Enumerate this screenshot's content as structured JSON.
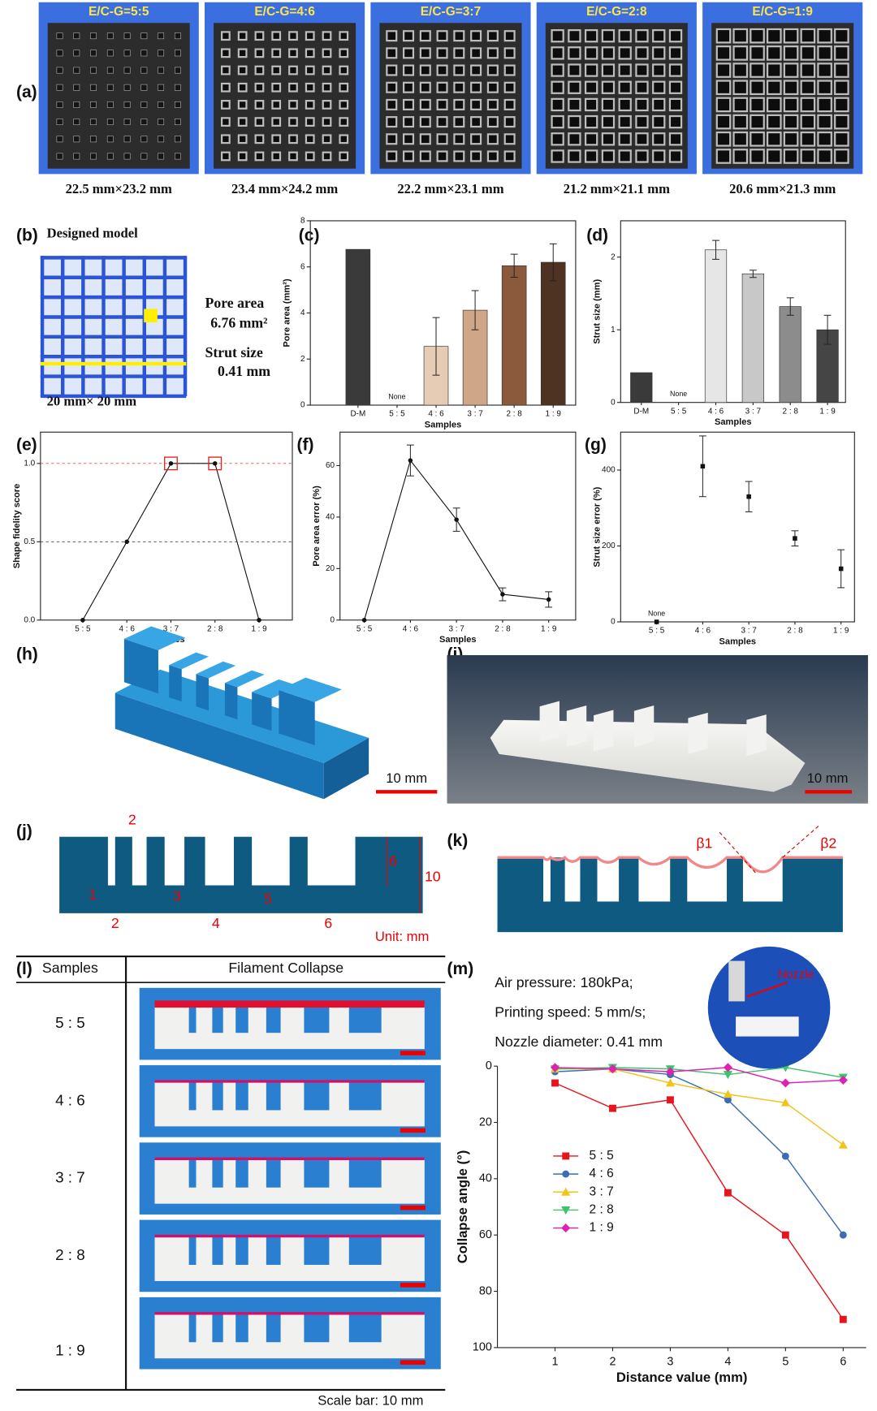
{
  "panel_labels": [
    "(a)",
    "(b)",
    "(c)",
    "(d)",
    "(e)",
    "(f)",
    "(g)",
    "(h)",
    "(i)",
    "(j)",
    "(k)",
    "(l)",
    "(m)"
  ],
  "panel_a": {
    "labels": [
      "E/C-G=5:5",
      "E/C-G=4:6",
      "E/C-G=3:7",
      "E/C-G=2:8",
      "E/C-G=1:9"
    ],
    "sizes": [
      "22.5 mm×23.2 mm",
      "23.4 mm×24.2 mm",
      "22.2 mm×23.1 mm",
      "21.2 mm×21.1 mm",
      "20.6 mm×21.3 mm"
    ]
  },
  "panel_b": {
    "title": "Designed model",
    "pore_area_label": "Pore area",
    "pore_area": "6.76 mm²",
    "strut_size_label": "Strut size",
    "strut_size": "0.41 mm",
    "dimensions": "20 mm× 20 mm"
  },
  "panel_h": {
    "scale_bar": "10 mm"
  },
  "panel_i": {
    "scale_bar": "10 mm"
  },
  "panel_j": {
    "dimensions": [
      "2",
      "1",
      "2",
      "3",
      "4",
      "5",
      "6",
      "6",
      "10"
    ],
    "unit": "Unit: mm"
  },
  "panel_k": {
    "angles": [
      "β1",
      "β2"
    ]
  },
  "panel_l": {
    "headers": [
      "Samples",
      "Filament Collapse"
    ],
    "rows": [
      "5 : 5",
      "4 : 6",
      "3 : 7",
      "2 : 8",
      "1 : 9"
    ],
    "scale_bar": "Scale bar: 10 mm"
  },
  "panel_m": {
    "conditions": [
      "Air pressure:  180kPa;",
      "Printing speed:  5 mm/s;",
      "Nozzle diameter:  0.41 mm"
    ],
    "callout": "Nozzle"
  },
  "chart_data": [
    {
      "type": "bar",
      "ylabel": "Pore area (mm²)",
      "xlabel": "Samples",
      "categories": [
        "D-M",
        "5 : 5",
        "4 : 6",
        "3 : 7",
        "2 : 8",
        "1 : 9"
      ],
      "values": [
        6.76,
        null,
        2.55,
        4.12,
        6.05,
        6.2
      ],
      "errors": [
        null,
        null,
        1.25,
        0.85,
        0.5,
        0.8
      ],
      "colors": [
        "#3a3a3a",
        "#cccccc",
        "#e6cbb5",
        "#cfa688",
        "#8b5a3c",
        "#4e3222"
      ],
      "ylim": [
        0,
        8
      ],
      "yticks": [
        0,
        2,
        4,
        6,
        8
      ],
      "annotations": [
        {
          "text": "None",
          "x": "5 : 5"
        }
      ]
    },
    {
      "type": "bar",
      "ylabel": "Strut size (mm)",
      "xlabel": "Samples",
      "categories": [
        "D-M",
        "5 : 5",
        "4 : 6",
        "3 : 7",
        "2 : 8",
        "1 : 9"
      ],
      "values": [
        0.41,
        null,
        2.1,
        1.77,
        1.32,
        1.0
      ],
      "errors": [
        null,
        null,
        0.13,
        0.05,
        0.12,
        0.2
      ],
      "colors": [
        "#3a3a3a",
        "#cccccc",
        "#e6e6e6",
        "#c8c8c8",
        "#8c8c8c",
        "#454545"
      ],
      "ylim": [
        0,
        2.5
      ],
      "yticks": [
        0,
        1,
        2
      ],
      "annotations": [
        {
          "text": "None",
          "x": "5 : 5"
        }
      ]
    },
    {
      "type": "line",
      "ylabel": "Shape fidelity score",
      "xlabel": "Samples",
      "categories": [
        "5 : 5",
        "4 : 6",
        "3 : 7",
        "2 : 8",
        "1 : 9"
      ],
      "values": [
        0,
        0.5,
        1,
        1,
        0
      ],
      "color": "#111111",
      "ylim": [
        0,
        1.2
      ],
      "yticks": [
        {
          "value": 0,
          "label": "0.0"
        },
        {
          "value": 0.5,
          "label": "0.5"
        },
        {
          "value": 1,
          "label": "1.0"
        }
      ],
      "reference_lines": [
        {
          "value": 1,
          "color": "#e05050"
        },
        {
          "value": 0.5,
          "color": "#444444"
        }
      ],
      "highlight": [
        "3 : 7",
        "2 : 8"
      ],
      "highlight_color": "#e02020"
    },
    {
      "type": "line",
      "ylabel": "Pore area error (%)",
      "xlabel": "Samples",
      "categories": [
        "5 : 5",
        "4 : 6",
        "3 : 7",
        "2 : 8",
        "1 : 9"
      ],
      "values": [
        0,
        62,
        39,
        10,
        8
      ],
      "errors": [
        null,
        6,
        4.5,
        2.5,
        3
      ],
      "color": "#111111",
      "ylim": [
        0,
        73
      ],
      "yticks": [
        0,
        20,
        40,
        60
      ]
    },
    {
      "type": "scatter",
      "ylabel": "Strut size error (%)",
      "xlabel": "Samples",
      "categories": [
        "5 : 5",
        "4 : 6",
        "3 : 7",
        "2 : 8",
        "1 : 9"
      ],
      "values": [
        0,
        410,
        330,
        220,
        140
      ],
      "errors": [
        null,
        80,
        40,
        20,
        50
      ],
      "color": "#111111",
      "ylim": [
        0,
        500
      ],
      "yticks": [
        0,
        200,
        400
      ],
      "annotations": [
        {
          "text": "None",
          "x": "5 : 5"
        }
      ]
    },
    {
      "type": "line",
      "ylabel": "Collapse angle (°)",
      "xlabel": "Distance value (mm)",
      "x": [
        1,
        2,
        3,
        4,
        5,
        6
      ],
      "xlim": [
        0,
        6.4
      ],
      "xticks": [
        1,
        2,
        3,
        4,
        5,
        6
      ],
      "ylim": [
        0,
        100
      ],
      "yticks": [
        0,
        20,
        40,
        60,
        80,
        100
      ],
      "y_reversed": true,
      "series": [
        {
          "name": "5 : 5",
          "color": "#e8141c",
          "marker": "square",
          "values": [
            6,
            15,
            12,
            45,
            60,
            90
          ]
        },
        {
          "name": "4 : 6",
          "color": "#3a6db3",
          "marker": "circle",
          "values": [
            2,
            1,
            3,
            12,
            32,
            60
          ]
        },
        {
          "name": "3 : 7",
          "color": "#f0c419",
          "marker": "triangle",
          "values": [
            1,
            1,
            6,
            10,
            13,
            28
          ]
        },
        {
          "name": "2 : 8",
          "color": "#3cc46a",
          "marker": "triangle-down",
          "values": [
            1,
            0.5,
            1,
            3,
            0.5,
            4
          ]
        },
        {
          "name": "1 : 9",
          "color": "#e020b0",
          "marker": "diamond",
          "values": [
            0.5,
            1,
            2,
            0.5,
            6,
            5
          ]
        }
      ]
    }
  ]
}
